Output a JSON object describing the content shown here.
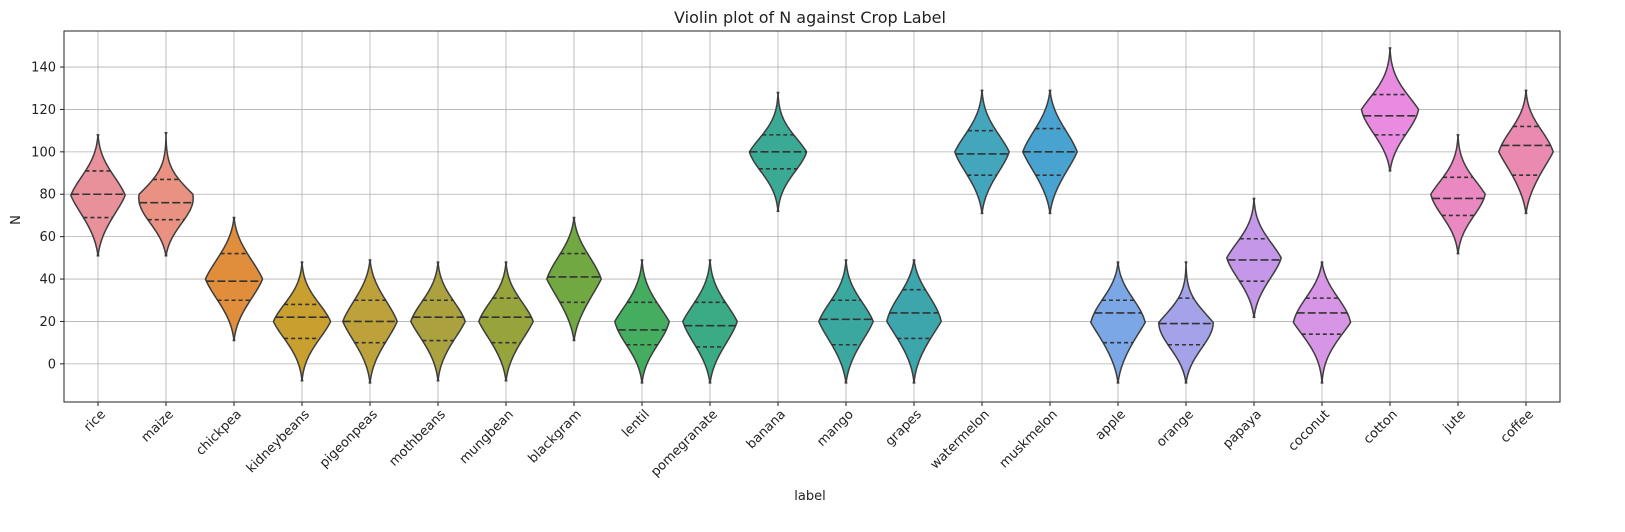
{
  "chart_data": {
    "type": "violin",
    "title": "Violin plot of N against Crop Label",
    "xlabel": "label",
    "ylabel": "N",
    "ylim": [
      -18,
      157
    ],
    "yticks": [
      0,
      20,
      40,
      60,
      80,
      100,
      120,
      140
    ],
    "grid": true,
    "categories": [
      "rice",
      "maize",
      "chickpea",
      "kidneybeans",
      "pigeonpeas",
      "mothbeans",
      "mungbean",
      "blackgram",
      "lentil",
      "pomegranate",
      "banana",
      "mango",
      "grapes",
      "watermelon",
      "muskmelon",
      "apple",
      "orange",
      "papaya",
      "coconut",
      "cotton",
      "jute",
      "coffee"
    ],
    "colors": [
      "#e8919a",
      "#e99282",
      "#e08d3c",
      "#c9a02f",
      "#bda23c",
      "#aba23f",
      "#96a43b",
      "#72a842",
      "#45ad5f",
      "#3aab84",
      "#3aaa95",
      "#3ba8a0",
      "#3da6ad",
      "#43a6bd",
      "#49a3d1",
      "#7ba7e6",
      "#a4a3ea",
      "#c597e9",
      "#d795e5",
      "#e98be0",
      "#ea89c1",
      "#ea8ab1"
    ],
    "series": [
      {
        "name": "rice",
        "min": 51,
        "max": 108,
        "q1": 69,
        "median": 80,
        "q3": 91,
        "max_width": 0.4,
        "mode": 87
      },
      {
        "name": "maize",
        "min": 51,
        "max": 109,
        "q1": 68,
        "median": 76,
        "q3": 87,
        "max_width": 0.4,
        "mode": 76
      },
      {
        "name": "chickpea",
        "min": 11,
        "max": 69,
        "q1": 30,
        "median": 39,
        "q3": 52,
        "max_width": 0.42,
        "mode": 50
      },
      {
        "name": "kidneybeans",
        "min": -8,
        "max": 48,
        "q1": 12,
        "median": 22,
        "q3": 28,
        "max_width": 0.42,
        "mode": 26
      },
      {
        "name": "pigeonpeas",
        "min": -9,
        "max": 49,
        "q1": 10,
        "median": 20,
        "q3": 30,
        "max_width": 0.4,
        "mode": 30
      },
      {
        "name": "mothbeans",
        "min": -8,
        "max": 48,
        "q1": 11,
        "median": 22,
        "q3": 30,
        "max_width": 0.4,
        "mode": 28
      },
      {
        "name": "mungbean",
        "min": -8,
        "max": 48,
        "q1": 10,
        "median": 22,
        "q3": 31,
        "max_width": 0.4,
        "mode": 27
      },
      {
        "name": "blackgram",
        "min": 11,
        "max": 69,
        "q1": 29,
        "median": 41,
        "q3": 52,
        "max_width": 0.4,
        "mode": 50
      },
      {
        "name": "lentil",
        "min": -9,
        "max": 49,
        "q1": 9,
        "median": 16,
        "q3": 29,
        "max_width": 0.4,
        "mode": 27
      },
      {
        "name": "pomegranate",
        "min": -9,
        "max": 49,
        "q1": 8,
        "median": 18,
        "q3": 29,
        "max_width": 0.4,
        "mode": 27
      },
      {
        "name": "banana",
        "min": 72,
        "max": 128,
        "q1": 92,
        "median": 100,
        "q3": 108,
        "max_width": 0.42,
        "mode": 103
      },
      {
        "name": "mango",
        "min": -9,
        "max": 49,
        "q1": 9,
        "median": 21,
        "q3": 30,
        "max_width": 0.4,
        "mode": 27
      },
      {
        "name": "grapes",
        "min": -9,
        "max": 49,
        "q1": 12,
        "median": 24,
        "q3": 35,
        "max_width": 0.4,
        "mode": 32
      },
      {
        "name": "watermelon",
        "min": 71,
        "max": 129,
        "q1": 89,
        "median": 99,
        "q3": 110,
        "max_width": 0.4,
        "mode": 107
      },
      {
        "name": "muskmelon",
        "min": 71,
        "max": 129,
        "q1": 89,
        "median": 100,
        "q3": 111,
        "max_width": 0.4,
        "mode": 110
      },
      {
        "name": "apple",
        "min": -9,
        "max": 48,
        "q1": 10,
        "median": 24,
        "q3": 30,
        "max_width": 0.4,
        "mode": 28
      },
      {
        "name": "orange",
        "min": -9,
        "max": 48,
        "q1": 9,
        "median": 19,
        "q3": 31,
        "max_width": 0.4,
        "mode": 17
      },
      {
        "name": "papaya",
        "min": 22,
        "max": 78,
        "q1": 39,
        "median": 49,
        "q3": 59,
        "max_width": 0.4,
        "mode": 55
      },
      {
        "name": "coconut",
        "min": -9,
        "max": 48,
        "q1": 14,
        "median": 24,
        "q3": 31,
        "max_width": 0.42,
        "mode": 31
      },
      {
        "name": "cotton",
        "min": 91,
        "max": 149,
        "q1": 108,
        "median": 117,
        "q3": 127,
        "max_width": 0.42,
        "mode": 124
      },
      {
        "name": "jute",
        "min": 52,
        "max": 108,
        "q1": 70,
        "median": 78,
        "q3": 88,
        "max_width": 0.4,
        "mode": 84
      },
      {
        "name": "coffee",
        "min": 71,
        "max": 129,
        "q1": 89,
        "median": 103,
        "q3": 112,
        "max_width": 0.4,
        "mode": 107
      }
    ]
  }
}
